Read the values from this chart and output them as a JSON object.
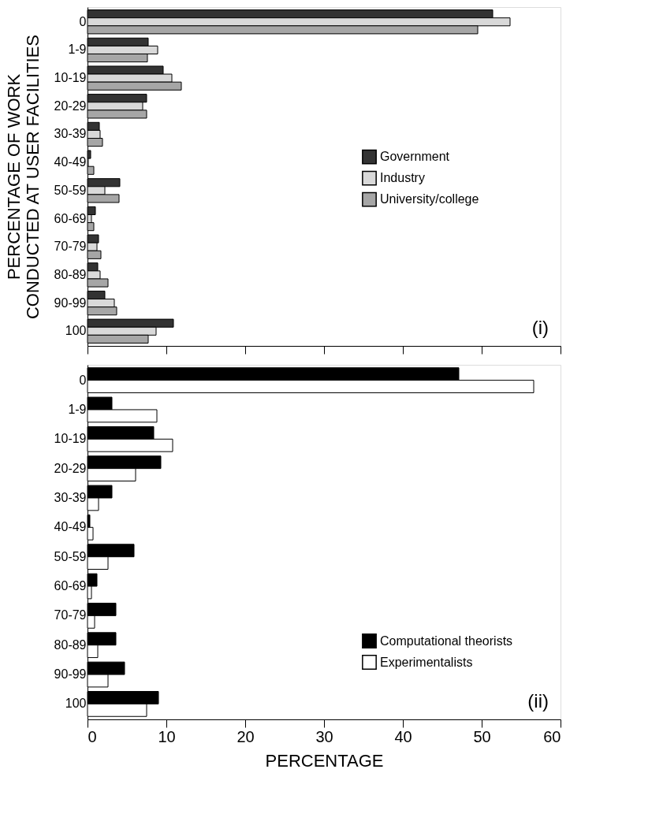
{
  "chart_data": [
    {
      "type": "bar",
      "orientation": "horizontal",
      "ylabel": "PERCENTAGE OF WORK\nCONDUCTED AT USER FACILITIES",
      "categories": [
        "0",
        "1-9",
        "10-19",
        "20-29",
        "30-39",
        "40-49",
        "50-59",
        "60-69",
        "70-79",
        "80-89",
        "90-99",
        "100"
      ],
      "series": [
        {
          "name": "Government",
          "color": "#333333",
          "values": [
            51.4,
            7.7,
            9.6,
            7.5,
            1.5,
            0.4,
            4.1,
            1.0,
            1.4,
            1.3,
            2.2,
            10.9
          ]
        },
        {
          "name": "Industry",
          "color": "#d9d9d9",
          "values": [
            53.6,
            8.9,
            10.7,
            7.0,
            1.6,
            0.1,
            2.2,
            0.5,
            1.2,
            1.6,
            3.4,
            8.7
          ]
        },
        {
          "name": "University/college",
          "color": "#a6a6a6",
          "values": [
            49.5,
            7.6,
            11.9,
            7.5,
            1.9,
            0.8,
            4.0,
            0.8,
            1.7,
            2.6,
            3.7,
            7.7
          ]
        }
      ],
      "xlim": [
        0,
        60
      ],
      "xticks": [
        0,
        10,
        20,
        30,
        40,
        50,
        60
      ],
      "tick_labels": "y",
      "grid": false,
      "legend": "right",
      "annotations": [
        "(i)"
      ]
    },
    {
      "type": "bar",
      "orientation": "horizontal",
      "xlabel": "PERCENTAGE",
      "categories": [
        "0",
        "1-9",
        "10-19",
        "20-29",
        "30-39",
        "40-49",
        "50-59",
        "60-69",
        "70-79",
        "80-89",
        "90-99",
        "100"
      ],
      "series": [
        {
          "name": "Computational theorists",
          "color": "#000000",
          "values": [
            47.1,
            3.1,
            8.4,
            9.3,
            3.1,
            0.3,
            5.9,
            1.2,
            3.6,
            3.6,
            4.7,
            9.0
          ]
        },
        {
          "name": "Experimentalists",
          "color": "#ffffff",
          "values": [
            56.6,
            8.8,
            10.8,
            6.1,
            1.4,
            0.7,
            2.6,
            0.5,
            0.9,
            1.3,
            2.6,
            7.5
          ]
        }
      ],
      "xlim": [
        0,
        60
      ],
      "xticks": [
        0,
        10,
        20,
        30,
        40,
        50,
        60
      ],
      "grid": false,
      "legend": "bottom right",
      "annotations": [
        "(ii)"
      ]
    }
  ]
}
